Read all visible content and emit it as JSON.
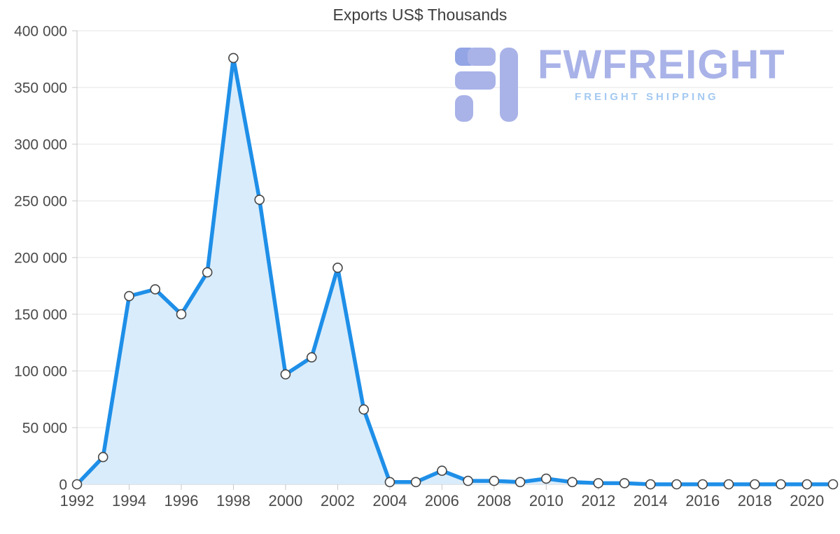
{
  "title": "Exports US$ Thousands",
  "watermark": {
    "brand": "FWFREIGHT",
    "tagline": "FREIGHT SHIPPING",
    "brand_color": "#a9b3e8",
    "tagline_color": "#a4c9f1",
    "logo_color": "#a9b3e8",
    "logo_accent_color": "#93a5e4"
  },
  "chart_data": {
    "type": "area",
    "title": "Exports US$ Thousands",
    "x": [
      1992,
      1993,
      1994,
      1995,
      1996,
      1997,
      1998,
      1999,
      2000,
      2001,
      2002,
      2003,
      2004,
      2005,
      2006,
      2007,
      2008,
      2009,
      2010,
      2011,
      2012,
      2013,
      2014,
      2015,
      2016,
      2017,
      2018,
      2019,
      2020,
      2021
    ],
    "values": [
      0,
      24000,
      166000,
      172000,
      150000,
      187000,
      376000,
      251000,
      97000,
      112000,
      191000,
      66000,
      2000,
      2000,
      12000,
      3000,
      3000,
      2000,
      5000,
      2000,
      1000,
      1000,
      0,
      0,
      0,
      0,
      0,
      0,
      0,
      0
    ],
    "ylim": [
      0,
      400000
    ],
    "ytick_values": [
      0,
      50000,
      100000,
      150000,
      200000,
      250000,
      300000,
      350000,
      400000
    ],
    "ytick_labels": [
      "0",
      "50 000",
      "100 000",
      "150 000",
      "200 000",
      "250 000",
      "300 000",
      "350 000",
      "400 000"
    ],
    "xtick_values": [
      1992,
      1994,
      1996,
      1998,
      2000,
      2002,
      2004,
      2006,
      2008,
      2010,
      2012,
      2014,
      2016,
      2018,
      2020
    ],
    "grid": true,
    "legend": "none",
    "xlabel": "",
    "ylabel": "",
    "line_color": "#1e8fe8",
    "fill_color": "#d9ecfb",
    "marker_fill": "#ffffff",
    "marker_stroke": "#454545"
  }
}
